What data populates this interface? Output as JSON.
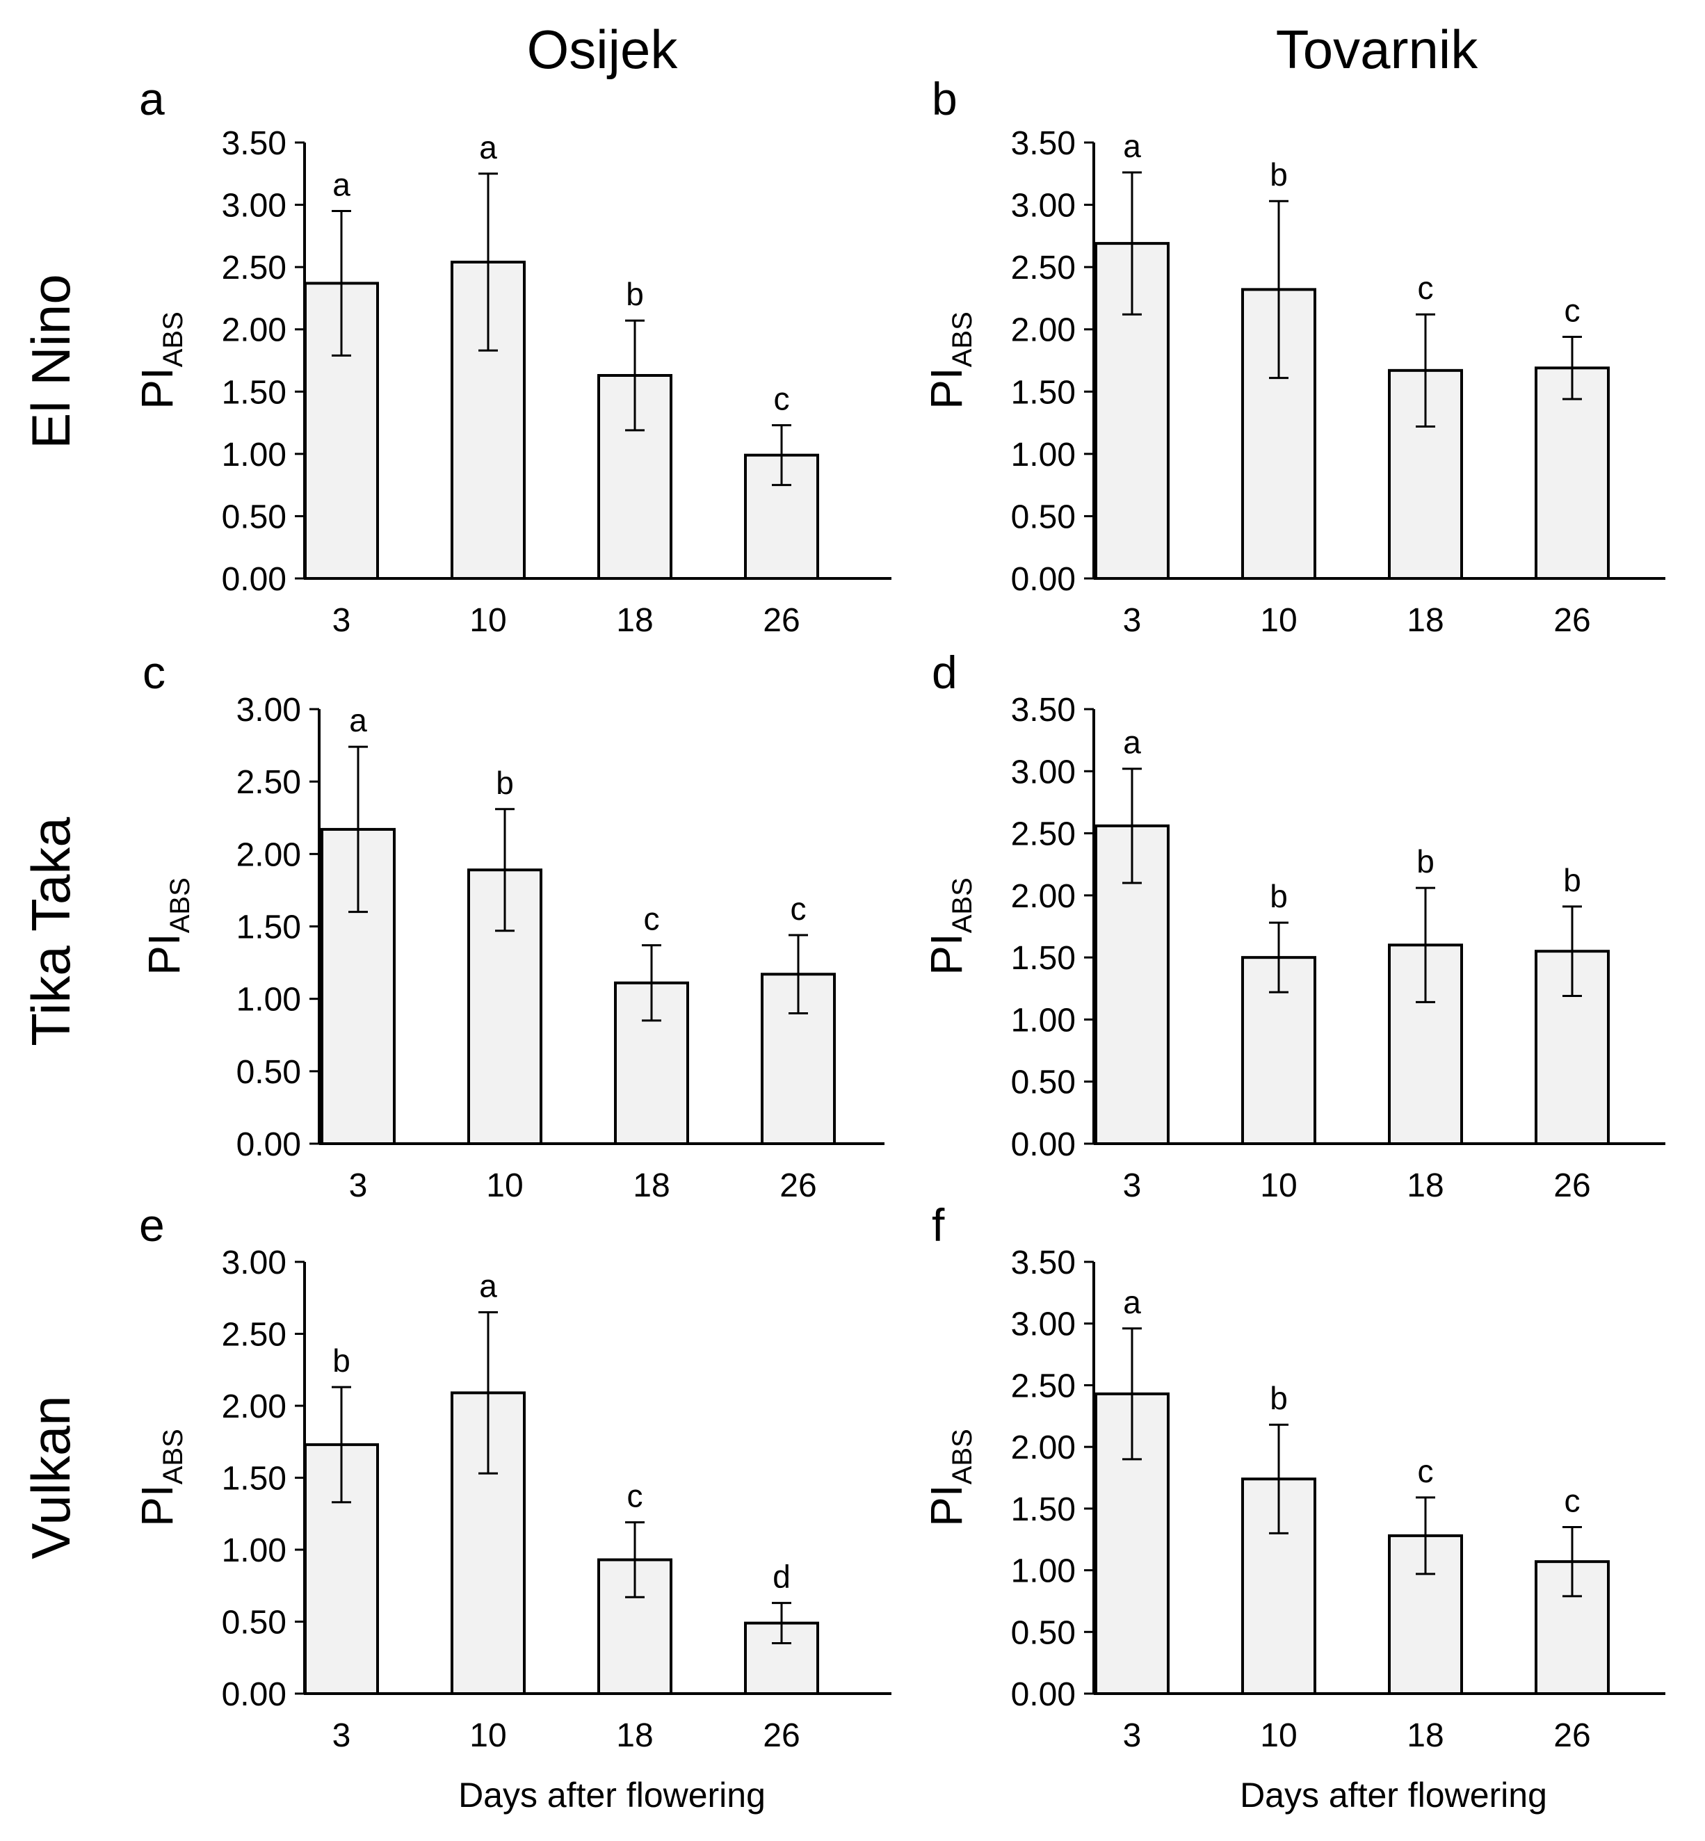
{
  "column_titles": [
    "Osijek",
    "Tovarnik"
  ],
  "row_titles": [
    "El Nino",
    "Tika Taka",
    "Vulkan"
  ],
  "chart_data": [
    {
      "panel": "a",
      "type": "bar",
      "location": "Osijek",
      "cultivar": "El Nino",
      "categories": [
        "3",
        "10",
        "18",
        "26"
      ],
      "values": [
        2.37,
        2.54,
        1.63,
        0.99
      ],
      "errors": [
        0.58,
        0.71,
        0.44,
        0.24
      ],
      "letters": [
        "a",
        "a",
        "b",
        "c"
      ],
      "ylim": [
        0,
        3.5
      ],
      "yticks": [
        "0.00",
        "0.50",
        "1.00",
        "1.50",
        "2.00",
        "2.50",
        "3.00",
        "3.50"
      ],
      "ylabel": "PI",
      "ylabel_sub": "ABS",
      "xlabel": ""
    },
    {
      "panel": "b",
      "type": "bar",
      "location": "Tovarnik",
      "cultivar": "El Nino",
      "categories": [
        "3",
        "10",
        "18",
        "26"
      ],
      "values": [
        2.69,
        2.32,
        1.67,
        1.69
      ],
      "errors": [
        0.57,
        0.71,
        0.45,
        0.25
      ],
      "letters": [
        "a",
        "b",
        "c",
        "c"
      ],
      "ylim": [
        0,
        3.5
      ],
      "yticks": [
        "0.00",
        "0.50",
        "1.00",
        "1.50",
        "2.00",
        "2.50",
        "3.00",
        "3.50"
      ],
      "ylabel": "PI",
      "ylabel_sub": "ABS",
      "xlabel": ""
    },
    {
      "panel": "c",
      "type": "bar",
      "location": "Osijek",
      "cultivar": "Tika Taka",
      "categories": [
        "3",
        "10",
        "18",
        "26"
      ],
      "values": [
        2.17,
        1.89,
        1.11,
        1.17
      ],
      "errors": [
        0.57,
        0.42,
        0.26,
        0.27
      ],
      "letters": [
        "a",
        "b",
        "c",
        "c"
      ],
      "ylim": [
        0,
        3.0
      ],
      "yticks": [
        "0.00",
        "0.50",
        "1.00",
        "1.50",
        "2.00",
        "2.50",
        "3.00"
      ],
      "ylabel": "PI",
      "ylabel_sub": "ABS",
      "xlabel": ""
    },
    {
      "panel": "d",
      "type": "bar",
      "location": "Tovarnik",
      "cultivar": "Tika Taka",
      "categories": [
        "3",
        "10",
        "18",
        "26"
      ],
      "values": [
        2.56,
        1.5,
        1.6,
        1.55
      ],
      "errors": [
        0.46,
        0.28,
        0.46,
        0.36
      ],
      "letters": [
        "a",
        "b",
        "b",
        "b"
      ],
      "ylim": [
        0,
        3.5
      ],
      "yticks": [
        "0.00",
        "0.50",
        "1.00",
        "1.50",
        "2.00",
        "2.50",
        "3.00",
        "3.50"
      ],
      "ylabel": "PI",
      "ylabel_sub": "ABS",
      "xlabel": ""
    },
    {
      "panel": "e",
      "type": "bar",
      "location": "Osijek",
      "cultivar": "Vulkan",
      "categories": [
        "3",
        "10",
        "18",
        "26"
      ],
      "values": [
        1.73,
        2.09,
        0.93,
        0.49
      ],
      "errors": [
        0.4,
        0.56,
        0.26,
        0.14
      ],
      "letters": [
        "b",
        "a",
        "c",
        "d"
      ],
      "ylim": [
        0,
        3.0
      ],
      "yticks": [
        "0.00",
        "0.50",
        "1.00",
        "1.50",
        "2.00",
        "2.50",
        "3.00"
      ],
      "ylabel": "PI",
      "ylabel_sub": "ABS",
      "xlabel": "Days after flowering"
    },
    {
      "panel": "f",
      "type": "bar",
      "location": "Tovarnik",
      "cultivar": "Vulkan",
      "categories": [
        "3",
        "10",
        "18",
        "26"
      ],
      "values": [
        2.43,
        1.74,
        1.28,
        1.07
      ],
      "errors": [
        0.53,
        0.44,
        0.31,
        0.28
      ],
      "letters": [
        "a",
        "b",
        "c",
        "c"
      ],
      "ylim": [
        0,
        3.5
      ],
      "yticks": [
        "0.00",
        "0.50",
        "1.00",
        "1.50",
        "2.00",
        "2.50",
        "3.00",
        "3.50"
      ],
      "ylabel": "PI",
      "ylabel_sub": "ABS",
      "xlabel": "Days after flowering"
    }
  ]
}
